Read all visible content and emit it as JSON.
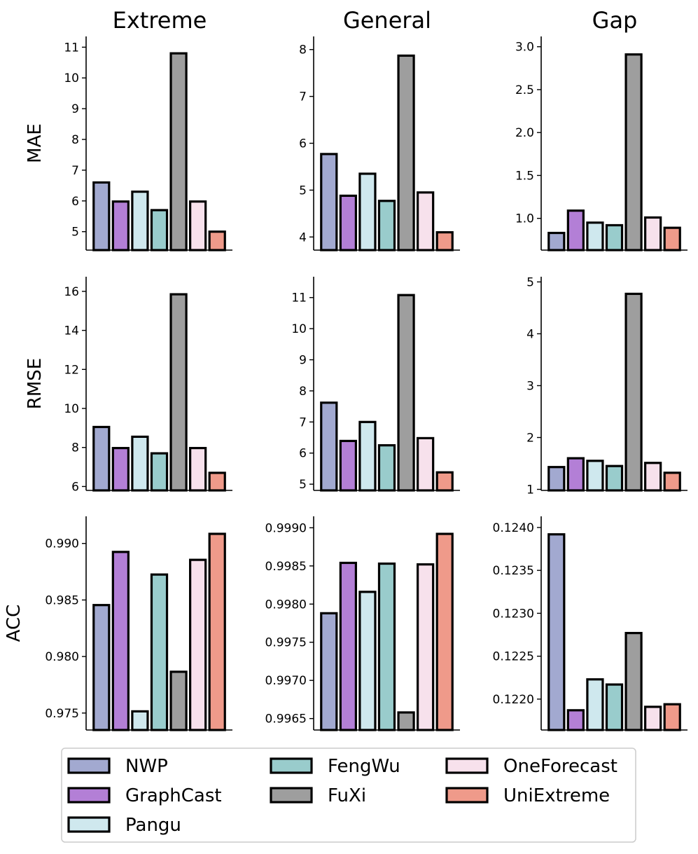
{
  "chart_data": {
    "type": "bar",
    "column_titles": [
      "Extreme",
      "General",
      "Gap"
    ],
    "row_labels": [
      "MAE",
      "RMSE",
      "ACC"
    ],
    "categories": [
      "NWP",
      "GraphCast",
      "Pangu",
      "FengWu",
      "FuXi",
      "OneForecast",
      "UniExtreme"
    ],
    "colors": [
      "#a2a9d0",
      "#b37fd6",
      "#cfe8ee",
      "#99cccc",
      "#9e9e9e",
      "#f7e1ec",
      "#ef9a8a"
    ],
    "legend": {
      "placement": "bottom",
      "entries": [
        "NWP",
        "GraphCast",
        "Pangu",
        "FengWu",
        "FuXi",
        "OneForecast",
        "UniExtreme"
      ]
    },
    "panels": [
      {
        "row": 0,
        "col": 0,
        "ylabel": "MAE",
        "title": "Extreme",
        "values": [
          6.6,
          5.98,
          6.3,
          5.7,
          10.8,
          5.98,
          5.0
        ],
        "ylim": [
          4.4,
          11.35
        ],
        "ticks": [
          5,
          6,
          7,
          8,
          9,
          10,
          11
        ],
        "tick_labels": [
          "5",
          "6",
          "7",
          "8",
          "9",
          "10",
          "11"
        ]
      },
      {
        "row": 0,
        "col": 1,
        "title": "General",
        "values": [
          5.77,
          4.88,
          5.35,
          4.77,
          7.87,
          4.95,
          4.1
        ],
        "ylim": [
          3.72,
          8.28
        ],
        "ticks": [
          4,
          5,
          6,
          7,
          8
        ],
        "tick_labels": [
          "4",
          "5",
          "6",
          "7",
          "8"
        ]
      },
      {
        "row": 0,
        "col": 2,
        "title": "Gap",
        "values": [
          0.83,
          1.09,
          0.95,
          0.92,
          2.91,
          1.01,
          0.89
        ],
        "ylim": [
          0.63,
          3.12
        ],
        "ticks": [
          1.0,
          1.5,
          2.0,
          2.5,
          3.0
        ],
        "tick_labels": [
          "1.0",
          "1.5",
          "2.0",
          "2.5",
          "3.0"
        ]
      },
      {
        "row": 1,
        "col": 0,
        "ylabel": "RMSE",
        "values": [
          9.05,
          7.97,
          8.55,
          7.7,
          15.85,
          7.97,
          6.7
        ],
        "ylim": [
          5.8,
          16.75
        ],
        "ticks": [
          6,
          8,
          10,
          12,
          14,
          16
        ],
        "tick_labels": [
          "6",
          "8",
          "10",
          "12",
          "14",
          "16"
        ]
      },
      {
        "row": 1,
        "col": 1,
        "values": [
          7.62,
          6.39,
          7.0,
          6.25,
          11.08,
          6.48,
          5.38
        ],
        "ylim": [
          4.8,
          11.67
        ],
        "ticks": [
          5,
          6,
          7,
          8,
          9,
          10,
          11
        ],
        "tick_labels": [
          "5",
          "6",
          "7",
          "8",
          "9",
          "10",
          "11"
        ]
      },
      {
        "row": 1,
        "col": 2,
        "values": [
          1.43,
          1.6,
          1.55,
          1.45,
          4.77,
          1.51,
          1.32
        ],
        "ylim": [
          0.98,
          5.1
        ],
        "ticks": [
          1,
          2,
          3,
          4,
          5
        ],
        "tick_labels": [
          "1",
          "2",
          "3",
          "4",
          "5"
        ]
      },
      {
        "row": 2,
        "col": 0,
        "ylabel": "ACC",
        "values": [
          0.98455,
          0.98925,
          0.97515,
          0.98725,
          0.97865,
          0.98855,
          0.99085
        ],
        "ylim": [
          0.9735,
          0.9924
        ],
        "ticks": [
          0.975,
          0.98,
          0.985,
          0.99
        ],
        "tick_labels": [
          "0.975",
          "0.980",
          "0.985",
          "0.990"
        ]
      },
      {
        "row": 2,
        "col": 1,
        "values": [
          0.99788,
          0.99854,
          0.99816,
          0.99853,
          0.99658,
          0.99852,
          0.99892
        ],
        "ylim": [
          0.99635,
          0.99915
        ],
        "ticks": [
          0.9965,
          0.997,
          0.9975,
          0.998,
          0.9985,
          0.999
        ],
        "tick_labels": [
          "0.9965",
          "0.9970",
          "0.9975",
          "0.9980",
          "0.9985",
          "0.9990"
        ]
      },
      {
        "row": 2,
        "col": 2,
        "values": [
          0.12392,
          0.12187,
          0.12223,
          0.12217,
          0.12277,
          0.12191,
          0.12194
        ],
        "ylim": [
          0.12164,
          0.12413
        ],
        "ticks": [
          0.122,
          0.1225,
          0.123,
          0.1235,
          0.124
        ],
        "tick_labels": [
          "0.1220",
          "0.1225",
          "0.1230",
          "0.1235",
          "0.1240"
        ]
      }
    ]
  }
}
